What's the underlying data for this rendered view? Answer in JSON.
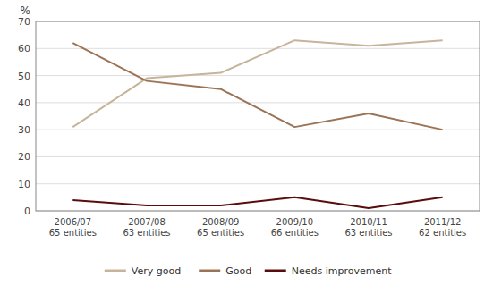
{
  "chart_data": {
    "type": "line",
    "ylabel": "%",
    "categories": [
      "2006/07\n65 entities",
      "2007/08\n63 entities",
      "2008/09\n65 entities",
      "2009/10\n66 entities",
      "2010/11\n63 entities",
      "2011/12\n62 entities"
    ],
    "series": [
      {
        "name": "Very good",
        "color": "#c8b49a",
        "values": [
          31,
          49,
          51,
          63,
          61,
          63
        ]
      },
      {
        "name": "Good",
        "color": "#9b7355",
        "values": [
          62,
          48,
          45,
          31,
          36,
          30
        ]
      },
      {
        "name": "Needs improvement",
        "color": "#5a0c0c",
        "values": [
          4,
          2,
          2,
          5,
          1,
          5
        ]
      }
    ],
    "ylim": [
      0,
      70
    ],
    "yticks": [
      0,
      10,
      20,
      30,
      40,
      50,
      60,
      70
    ],
    "grid": true,
    "legend": "bottom"
  }
}
